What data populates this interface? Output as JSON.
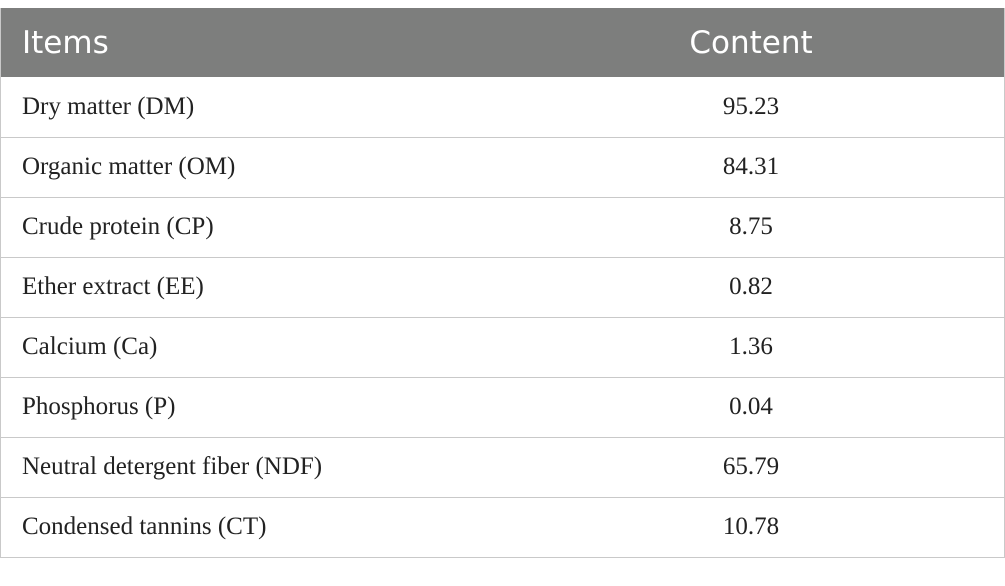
{
  "table": {
    "headers": {
      "items": "Items",
      "content": "Content"
    },
    "rows": [
      {
        "item": "Dry matter (DM)",
        "content": "95.23"
      },
      {
        "item": "Organic matter (OM)",
        "content": "84.31"
      },
      {
        "item": "Crude protein (CP)",
        "content": "8.75"
      },
      {
        "item": "Ether extract (EE)",
        "content": "0.82"
      },
      {
        "item": "Calcium (Ca)",
        "content": "1.36"
      },
      {
        "item": "Phosphorus (P)",
        "content": "0.04"
      },
      {
        "item": "Neutral detergent fiber (NDF)",
        "content": "65.79"
      },
      {
        "item": "Condensed tannins (CT)",
        "content": "10.78"
      }
    ]
  },
  "colors": {
    "header_background": "#7d7e7d",
    "header_text": "#ffffff",
    "grid_lines": "#c9c9c9"
  }
}
